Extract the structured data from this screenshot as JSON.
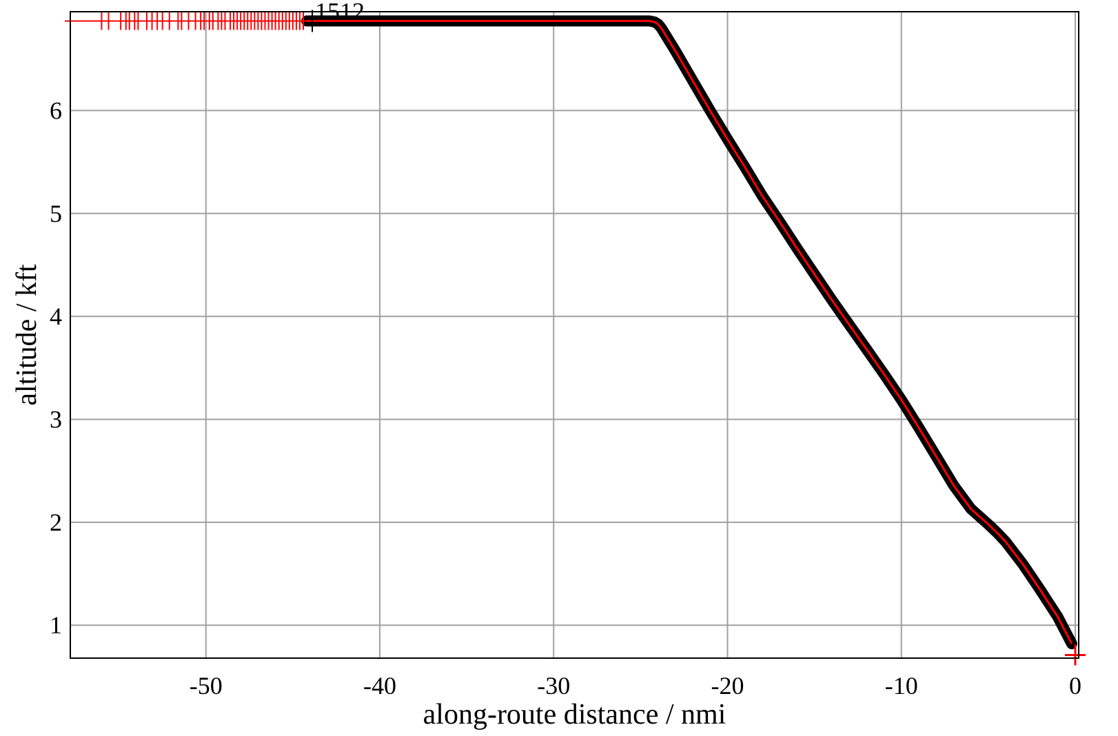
{
  "chart_data": {
    "type": "line",
    "title": "",
    "xlabel": "along-route distance / nmi",
    "ylabel": "altitude / kft",
    "xlim": [
      -57.8,
      0.2
    ],
    "ylim": [
      0.68,
      6.96
    ],
    "xticks": [
      -50,
      -40,
      -30,
      -20,
      -10,
      0
    ],
    "xtick_labels": [
      "-50",
      "-40",
      "-30",
      "-20",
      "-10",
      "0"
    ],
    "yticks": [
      1,
      2,
      3,
      4,
      5,
      6
    ],
    "ytick_labels": [
      "1",
      "2",
      "3",
      "4",
      "5",
      "6"
    ],
    "grid": true,
    "colors": {
      "track_outline": "#000000",
      "track": "#ff0000",
      "grid": "#a0a0a0",
      "markers": "#ff0000"
    },
    "series": [
      {
        "x": [
          -44.2,
          -30,
          -24.5,
          -24.2,
          -24.0,
          -23.8,
          -23,
          -22,
          -21,
          -20,
          -19,
          -18,
          -17,
          -16,
          -15,
          -14,
          -13,
          -12,
          -11,
          -10,
          -9,
          -8,
          -7,
          -6,
          -5,
          -4.5,
          -4,
          -3,
          -2,
          -1,
          -0.2
        ],
        "y": [
          6.87,
          6.87,
          6.87,
          6.86,
          6.84,
          6.8,
          6.58,
          6.29,
          6.0,
          5.72,
          5.45,
          5.17,
          4.92,
          4.66,
          4.41,
          4.16,
          3.92,
          3.68,
          3.44,
          3.19,
          2.92,
          2.64,
          2.36,
          2.13,
          1.98,
          1.9,
          1.81,
          1.59,
          1.34,
          1.08,
          0.82
        ]
      }
    ],
    "marker_x": [
      -57.8,
      -56,
      -55.6,
      -54.9,
      -54.6,
      -54.4,
      -54.1,
      -53.9,
      -53.4,
      -53.1,
      -52.8,
      -52.5,
      -52.1,
      -51.6,
      -51.4,
      -51,
      -50.6,
      -50.3,
      -50.1,
      -49.8,
      -49.6,
      -49.3,
      -49.1,
      -48.9,
      -48.6,
      -48.4,
      -48.2,
      -48.0,
      -47.8,
      -47.6,
      -47.4,
      -47.2,
      -47.0,
      -46.8,
      -46.6,
      -46.4,
      -46.2,
      -46.0,
      -45.8,
      -45.6,
      -45.4,
      -45.2,
      -45.0,
      -44.8,
      -44.6,
      -44.4
    ],
    "marker_y": 6.87,
    "end_marker": {
      "x": 0,
      "y": 0.71
    },
    "annotations": [
      {
        "text": "1512",
        "x": -44.2,
        "y": 6.87
      }
    ]
  }
}
